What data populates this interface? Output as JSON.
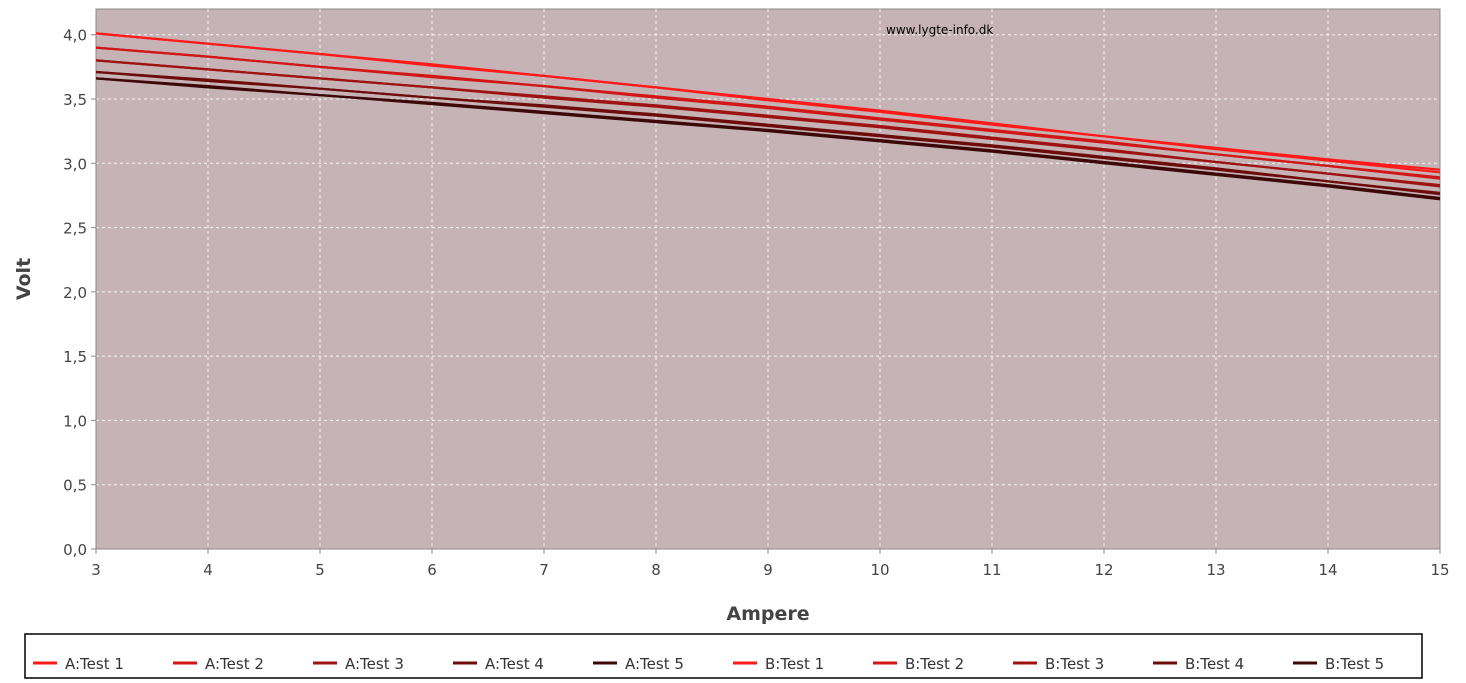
{
  "watermark": "www.lygte-info.dk",
  "chart_data": {
    "type": "line",
    "xlabel": "Ampere",
    "ylabel": "Volt",
    "xlim": [
      3,
      15
    ],
    "ylim": [
      0,
      4.2
    ],
    "x_ticks": [
      3,
      4,
      5,
      6,
      7,
      8,
      9,
      10,
      11,
      12,
      13,
      14,
      15
    ],
    "y_ticks": [
      "0,0",
      "0,5",
      "1,0",
      "1,5",
      "2,0",
      "2,5",
      "3,0",
      "3,5",
      "4,0"
    ],
    "y_tick_values": [
      0,
      0.5,
      1.0,
      1.5,
      2.0,
      2.5,
      3.0,
      3.5,
      4.0
    ],
    "grid": true,
    "plot_background": "#c6b3b5",
    "legend_position": "bottom",
    "x": [
      3,
      4,
      5,
      6,
      7,
      8,
      9,
      10,
      11,
      12,
      13,
      14,
      15
    ],
    "series": [
      {
        "name": "A:Test 1",
        "color": "#ff1a1a",
        "values": [
          4.01,
          3.93,
          3.85,
          3.77,
          3.68,
          3.59,
          3.5,
          3.41,
          3.31,
          3.21,
          3.11,
          3.02,
          2.93
        ]
      },
      {
        "name": "A:Test 2",
        "color": "#d11616",
        "values": [
          3.9,
          3.83,
          3.75,
          3.68,
          3.6,
          3.52,
          3.44,
          3.35,
          3.26,
          3.17,
          3.07,
          2.98,
          2.88
        ]
      },
      {
        "name": "A:Test 3",
        "color": "#9e1212",
        "values": [
          3.8,
          3.73,
          3.66,
          3.59,
          3.52,
          3.45,
          3.37,
          3.29,
          3.2,
          3.11,
          3.01,
          2.92,
          2.82
        ]
      },
      {
        "name": "A:Test 4",
        "color": "#6e0c0c",
        "values": [
          3.71,
          3.65,
          3.58,
          3.51,
          3.45,
          3.38,
          3.3,
          3.22,
          3.14,
          3.05,
          2.96,
          2.86,
          2.76
        ]
      },
      {
        "name": "A:Test 5",
        "color": "#3d0808",
        "values": [
          3.66,
          3.6,
          3.53,
          3.47,
          3.4,
          3.33,
          3.26,
          3.18,
          3.1,
          3.01,
          2.92,
          2.83,
          2.73
        ]
      },
      {
        "name": "B:Test 1",
        "color": "#ff1a1a",
        "values": [
          4.01,
          3.93,
          3.85,
          3.76,
          3.68,
          3.59,
          3.49,
          3.4,
          3.3,
          3.21,
          3.12,
          3.03,
          2.95
        ]
      },
      {
        "name": "B:Test 2",
        "color": "#d11616",
        "values": [
          3.9,
          3.83,
          3.75,
          3.67,
          3.6,
          3.51,
          3.43,
          3.34,
          3.25,
          3.16,
          3.07,
          2.98,
          2.89
        ]
      },
      {
        "name": "B:Test 3",
        "color": "#9e1212",
        "values": [
          3.8,
          3.73,
          3.66,
          3.59,
          3.51,
          3.44,
          3.36,
          3.28,
          3.19,
          3.1,
          3.01,
          2.92,
          2.83
        ]
      },
      {
        "name": "B:Test 4",
        "color": "#6e0c0c",
        "values": [
          3.71,
          3.64,
          3.58,
          3.51,
          3.44,
          3.37,
          3.29,
          3.21,
          3.13,
          3.04,
          2.95,
          2.86,
          2.77
        ]
      },
      {
        "name": "B:Test 5",
        "color": "#3d0808",
        "values": [
          3.66,
          3.59,
          3.53,
          3.46,
          3.39,
          3.32,
          3.25,
          3.17,
          3.09,
          3.0,
          2.91,
          2.82,
          2.72
        ]
      }
    ]
  }
}
